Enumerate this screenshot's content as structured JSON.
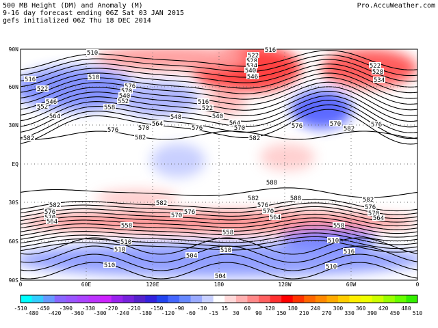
{
  "header": {
    "title_lines": [
      "500 MB Height (DM) and Anomaly (M)",
      "9-16 day forecast ending 06Z Sat 03 JAN 2015",
      "gefs initialized 06Z Thu 18 DEC 2014"
    ],
    "brand": "Pro.AccuWeather.com"
  },
  "map": {
    "lat_labels": [
      "90N",
      "60N",
      "30N",
      "EQ",
      "30S",
      "60S",
      "90S"
    ],
    "lon_labels": [
      "0",
      "60E",
      "120E",
      "180",
      "120W",
      "60W",
      "0"
    ],
    "contour_labels": [
      "510",
      "516",
      "522",
      "528",
      "534",
      "540",
      "546",
      "522",
      "528",
      "534",
      "510",
      "516",
      "522",
      "576",
      "570",
      "540",
      "552",
      "546",
      "558",
      "564",
      "552",
      "516",
      "522",
      "540",
      "564",
      "570",
      "576",
      "570",
      "564",
      "548",
      "576",
      "582",
      "582",
      "582",
      "576",
      "570",
      "582",
      "576",
      "588",
      "588",
      "582",
      "576",
      "570",
      "564",
      "582",
      "576",
      "570",
      "582",
      "576",
      "570",
      "564",
      "576",
      "570",
      "564",
      "582",
      "558",
      "510",
      "510",
      "510",
      "504",
      "504",
      "558",
      "510",
      "558",
      "510",
      "516",
      "510"
    ]
  },
  "colorbar": {
    "labels": [
      "-510",
      "-480",
      "-450",
      "-420",
      "-390",
      "-360",
      "-330",
      "-300",
      "-270",
      "-240",
      "-210",
      "-180",
      "-150",
      "-120",
      "-90",
      "-60",
      "-30",
      "-15",
      "15",
      "30",
      "60",
      "90",
      "120",
      "150",
      "180",
      "210",
      "240",
      "270",
      "300",
      "330",
      "360",
      "390",
      "420",
      "450",
      "480",
      "510"
    ],
    "colors": [
      "#00ffff",
      "#33ccff",
      "#6699ff",
      "#8866ff",
      "#9955ff",
      "#aa44ff",
      "#bb33ff",
      "#cc22ff",
      "#9922ee",
      "#7722dd",
      "#5522cc",
      "#3322dd",
      "#2244ee",
      "#4466ff",
      "#6688ff",
      "#99aaff",
      "#c8d0ff",
      "#ffffff",
      "#ffd8d8",
      "#ffb0b0",
      "#ff8888",
      "#ff6060",
      "#ff3030",
      "#ff0000",
      "#ff3300",
      "#ff6600",
      "#ff8800",
      "#ffaa00",
      "#ffcc00",
      "#ffee00",
      "#eeff00",
      "#ccff00",
      "#99ff00",
      "#66ff00",
      "#33ee00"
    ]
  }
}
